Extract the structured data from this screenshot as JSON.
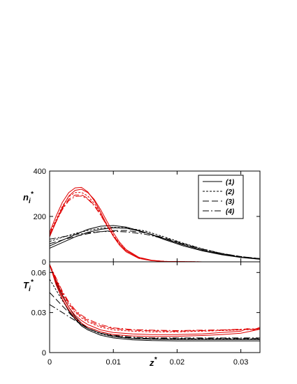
{
  "chart_data": [
    {
      "type": "line",
      "ylabel": "n",
      "ylabel_sub": "i",
      "ylabel_sup": "*",
      "xlim": [
        0,
        0.033
      ],
      "ylim": [
        0,
        400
      ],
      "yticks": [
        0,
        200,
        400
      ],
      "ytick_labels": [
        "0",
        "200",
        "400"
      ],
      "legend": {
        "placement": "top-right",
        "entries": [
          {
            "label": "(1)",
            "dash": "none"
          },
          {
            "label": "(2)",
            "dash": "3,2"
          },
          {
            "label": "(3)",
            "dash": "9,4"
          },
          {
            "label": "(4)",
            "dash": "9,3,2,3"
          }
        ]
      },
      "series": [
        {
          "color": "#000000",
          "dash": "none",
          "x": [
            0,
            0.002,
            0.004,
            0.006,
            0.008,
            0.01,
            0.012,
            0.015,
            0.018,
            0.021,
            0.024,
            0.027,
            0.03,
            0.033
          ],
          "y": [
            70,
            95,
            120,
            143,
            157,
            160,
            153,
            130,
            98,
            70,
            48,
            31,
            19,
            11
          ]
        },
        {
          "color": "#000000",
          "dash": "none",
          "x": [
            0,
            0.002,
            0.004,
            0.006,
            0.008,
            0.01,
            0.012,
            0.015,
            0.018,
            0.021,
            0.024,
            0.027,
            0.03,
            0.033
          ],
          "y": [
            60,
            85,
            110,
            130,
            143,
            150,
            148,
            130,
            102,
            74,
            51,
            33,
            20,
            12
          ]
        },
        {
          "color": "#000000",
          "dash": "3,2",
          "x": [
            0,
            0.002,
            0.004,
            0.006,
            0.008,
            0.01,
            0.012,
            0.015,
            0.018,
            0.021,
            0.024,
            0.027,
            0.03,
            0.033
          ],
          "y": [
            90,
            108,
            125,
            138,
            148,
            152,
            150,
            136,
            110,
            82,
            57,
            37,
            23,
            14
          ]
        },
        {
          "color": "#000000",
          "dash": "9,4",
          "x": [
            0,
            0.002,
            0.004,
            0.006,
            0.008,
            0.01,
            0.012,
            0.015,
            0.018,
            0.021,
            0.024,
            0.027,
            0.03,
            0.033
          ],
          "y": [
            80,
            96,
            112,
            124,
            133,
            138,
            138,
            128,
            106,
            80,
            56,
            37,
            23,
            14
          ]
        },
        {
          "color": "#000000",
          "dash": "9,3,2,3",
          "x": [
            0,
            0.002,
            0.004,
            0.006,
            0.008,
            0.01,
            0.012,
            0.015,
            0.018,
            0.021,
            0.024,
            0.027,
            0.03,
            0.033
          ],
          "y": [
            100,
            110,
            120,
            128,
            133,
            134,
            132,
            122,
            102,
            78,
            55,
            36,
            22,
            13
          ]
        },
        {
          "color": "#e00000",
          "dash": "none",
          "x": [
            0,
            0.001,
            0.002,
            0.003,
            0.004,
            0.005,
            0.006,
            0.007,
            0.008,
            0.009,
            0.01,
            0.011,
            0.012,
            0.014,
            0.016,
            0.018,
            0.02,
            0.024,
            0.033
          ],
          "y": [
            130,
            200,
            262,
            305,
            326,
            328,
            308,
            270,
            218,
            162,
            112,
            72,
            44,
            15,
            5,
            2,
            1,
            0,
            0
          ]
        },
        {
          "color": "#e00000",
          "dash": "none",
          "x": [
            0,
            0.001,
            0.002,
            0.003,
            0.004,
            0.005,
            0.006,
            0.007,
            0.008,
            0.009,
            0.01,
            0.011,
            0.012,
            0.014,
            0.016,
            0.018,
            0.02,
            0.024,
            0.033
          ],
          "y": [
            110,
            175,
            240,
            290,
            315,
            320,
            305,
            275,
            230,
            178,
            128,
            86,
            54,
            20,
            7,
            2,
            1,
            0,
            0
          ]
        },
        {
          "color": "#e00000",
          "dash": "3,2",
          "x": [
            0,
            0.001,
            0.002,
            0.003,
            0.004,
            0.005,
            0.006,
            0.007,
            0.008,
            0.009,
            0.01,
            0.011,
            0.012,
            0.014,
            0.016,
            0.018,
            0.02,
            0.024,
            0.033
          ],
          "y": [
            125,
            185,
            245,
            287,
            305,
            306,
            290,
            258,
            214,
            165,
            118,
            80,
            50,
            18,
            6,
            2,
            1,
            0,
            0
          ]
        },
        {
          "color": "#e00000",
          "dash": "9,4",
          "x": [
            0,
            0.001,
            0.002,
            0.003,
            0.004,
            0.005,
            0.006,
            0.007,
            0.008,
            0.009,
            0.01,
            0.011,
            0.012,
            0.014,
            0.016,
            0.018,
            0.02,
            0.024,
            0.033
          ],
          "y": [
            120,
            178,
            235,
            276,
            294,
            295,
            280,
            250,
            208,
            160,
            115,
            78,
            49,
            18,
            6,
            2,
            1,
            0,
            0
          ]
        },
        {
          "color": "#e00000",
          "dash": "9,3,2,3",
          "x": [
            0,
            0.001,
            0.002,
            0.003,
            0.004,
            0.005,
            0.006,
            0.007,
            0.008,
            0.009,
            0.01,
            0.011,
            0.012,
            0.014,
            0.016,
            0.018,
            0.02,
            0.024,
            0.033
          ],
          "y": [
            118,
            175,
            230,
            270,
            288,
            290,
            276,
            247,
            206,
            158,
            114,
            77,
            48,
            18,
            6,
            2,
            1,
            0,
            0
          ]
        }
      ]
    },
    {
      "type": "line",
      "xlabel": "z",
      "xlabel_sup": "*",
      "ylabel": "T",
      "ylabel_sub": "i",
      "ylabel_sup": "*",
      "xlim": [
        0,
        0.033
      ],
      "ylim": [
        0,
        0.068
      ],
      "xticks": [
        0,
        0.01,
        0.02,
        0.03
      ],
      "xtick_labels": [
        "0",
        "0.01",
        "0.02",
        "0.03"
      ],
      "yticks": [
        0,
        0.03,
        0.06
      ],
      "ytick_labels": [
        "0",
        "0.03",
        "0.06"
      ],
      "series": [
        {
          "color": "#000000",
          "dash": "none",
          "x": [
            0,
            0.001,
            0.002,
            0.003,
            0.004,
            0.005,
            0.006,
            0.008,
            0.01,
            0.013,
            0.016,
            0.02,
            0.025,
            0.03,
            0.033
          ],
          "y": [
            0.066,
            0.052,
            0.04,
            0.031,
            0.025,
            0.02,
            0.017,
            0.013,
            0.011,
            0.0095,
            0.009,
            0.0088,
            0.0088,
            0.0088,
            0.0088
          ]
        },
        {
          "color": "#000000",
          "dash": "none",
          "x": [
            0,
            0.001,
            0.002,
            0.003,
            0.004,
            0.005,
            0.006,
            0.008,
            0.01,
            0.013,
            0.016,
            0.02,
            0.025,
            0.03,
            0.033
          ],
          "y": [
            0.066,
            0.054,
            0.043,
            0.034,
            0.027,
            0.022,
            0.018,
            0.0145,
            0.012,
            0.0105,
            0.01,
            0.0098,
            0.0098,
            0.0098,
            0.0098
          ]
        },
        {
          "color": "#000000",
          "dash": "3,2",
          "x": [
            0,
            0.001,
            0.002,
            0.003,
            0.004,
            0.005,
            0.006,
            0.008,
            0.01,
            0.013,
            0.016,
            0.02,
            0.025,
            0.03,
            0.033
          ],
          "y": [
            0.055,
            0.047,
            0.039,
            0.032,
            0.026,
            0.021,
            0.018,
            0.014,
            0.012,
            0.0105,
            0.0102,
            0.0102,
            0.0102,
            0.0102,
            0.0102
          ]
        },
        {
          "color": "#000000",
          "dash": "9,4",
          "x": [
            0,
            0.001,
            0.002,
            0.003,
            0.004,
            0.005,
            0.006,
            0.008,
            0.01,
            0.013,
            0.016,
            0.02,
            0.025,
            0.03,
            0.033
          ],
          "y": [
            0.045,
            0.04,
            0.035,
            0.03,
            0.025,
            0.021,
            0.018,
            0.0145,
            0.0125,
            0.011,
            0.0105,
            0.0105,
            0.0105,
            0.0105,
            0.0105
          ]
        },
        {
          "color": "#000000",
          "dash": "9,3,2,3",
          "x": [
            0,
            0.001,
            0.002,
            0.003,
            0.004,
            0.005,
            0.006,
            0.008,
            0.01,
            0.013,
            0.016,
            0.02,
            0.025,
            0.03,
            0.033
          ],
          "y": [
            0.036,
            0.033,
            0.03,
            0.027,
            0.024,
            0.021,
            0.019,
            0.0155,
            0.013,
            0.0115,
            0.011,
            0.011,
            0.011,
            0.011,
            0.011
          ]
        },
        {
          "color": "#e00000",
          "dash": "none",
          "x": [
            0,
            0.001,
            0.002,
            0.003,
            0.004,
            0.005,
            0.006,
            0.008,
            0.01,
            0.013,
            0.016,
            0.02,
            0.024,
            0.027,
            0.03,
            0.031,
            0.032,
            0.033
          ],
          "y": [
            0.066,
            0.053,
            0.042,
            0.034,
            0.028,
            0.024,
            0.021,
            0.017,
            0.015,
            0.014,
            0.0135,
            0.0135,
            0.014,
            0.015,
            0.016,
            0.018,
            0.017,
            0.019
          ]
        },
        {
          "color": "#e00000",
          "dash": "none",
          "x": [
            0,
            0.001,
            0.002,
            0.003,
            0.004,
            0.005,
            0.006,
            0.008,
            0.01,
            0.013,
            0.016,
            0.02,
            0.024,
            0.027,
            0.03,
            0.031,
            0.032,
            0.033
          ],
          "y": [
            0.066,
            0.051,
            0.04,
            0.032,
            0.026,
            0.022,
            0.019,
            0.0155,
            0.0135,
            0.0125,
            0.012,
            0.0122,
            0.0128,
            0.0135,
            0.0145,
            0.0155,
            0.0165,
            0.0175
          ]
        },
        {
          "color": "#e00000",
          "dash": "3,2",
          "x": [
            0,
            0.001,
            0.002,
            0.003,
            0.004,
            0.005,
            0.006,
            0.008,
            0.01,
            0.013,
            0.016,
            0.02,
            0.024,
            0.027,
            0.03,
            0.033
          ],
          "y": [
            0.066,
            0.054,
            0.044,
            0.036,
            0.03,
            0.026,
            0.023,
            0.019,
            0.017,
            0.016,
            0.0155,
            0.0155,
            0.016,
            0.0165,
            0.017,
            0.0175
          ]
        },
        {
          "color": "#e00000",
          "dash": "9,4",
          "x": [
            0,
            0.001,
            0.002,
            0.003,
            0.004,
            0.005,
            0.006,
            0.008,
            0.01,
            0.013,
            0.016,
            0.02,
            0.024,
            0.027,
            0.03,
            0.033
          ],
          "y": [
            0.066,
            0.055,
            0.045,
            0.037,
            0.031,
            0.027,
            0.024,
            0.02,
            0.018,
            0.0168,
            0.0163,
            0.016,
            0.0165,
            0.0168,
            0.0172,
            0.0178
          ]
        },
        {
          "color": "#e00000",
          "dash": "9,3,2,3",
          "x": [
            0,
            0.001,
            0.002,
            0.003,
            0.004,
            0.005,
            0.006,
            0.008,
            0.01,
            0.013,
            0.016,
            0.02,
            0.024,
            0.027,
            0.03,
            0.033
          ],
          "y": [
            0.066,
            0.056,
            0.046,
            0.038,
            0.032,
            0.028,
            0.025,
            0.021,
            0.0185,
            0.0172,
            0.0168,
            0.0165,
            0.0168,
            0.017,
            0.0175,
            0.018
          ]
        }
      ]
    }
  ]
}
